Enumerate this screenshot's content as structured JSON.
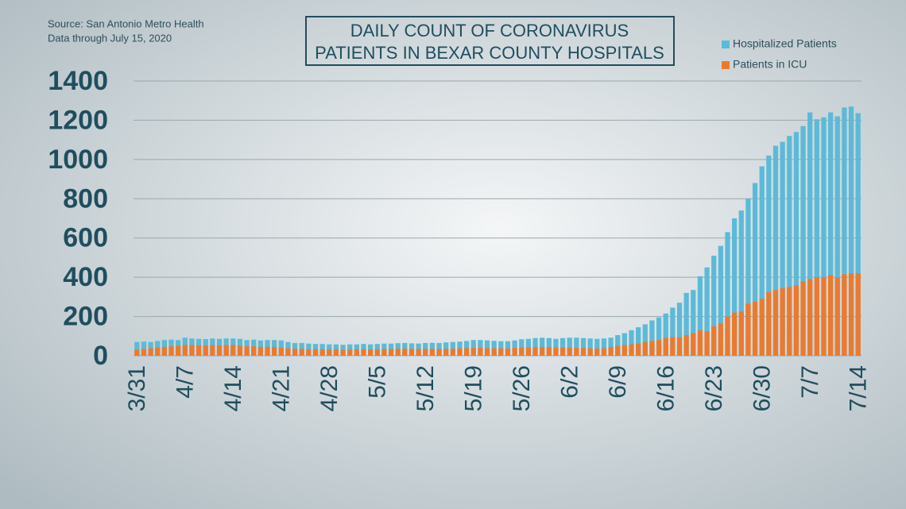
{
  "chart_data": {
    "type": "bar",
    "title": [
      "DAILY COUNT OF CORONAVIRUS",
      "PATIENTS IN BEXAR COUNTY HOSPITALS"
    ],
    "notes": [
      "Source: San Antonio Metro Health",
      "Data through July 15, 2020"
    ],
    "categories": [
      "3/31",
      null,
      null,
      null,
      null,
      null,
      null,
      "4/7",
      null,
      null,
      null,
      null,
      null,
      null,
      "4/14",
      null,
      null,
      null,
      null,
      null,
      null,
      "4/21",
      null,
      null,
      null,
      null,
      null,
      null,
      "4/28",
      null,
      null,
      null,
      null,
      null,
      null,
      "5/5",
      null,
      null,
      null,
      null,
      null,
      null,
      "5/12",
      null,
      null,
      null,
      null,
      null,
      null,
      "5/19",
      null,
      null,
      null,
      null,
      null,
      null,
      "5/26",
      null,
      null,
      null,
      null,
      null,
      null,
      "6/2",
      null,
      null,
      null,
      null,
      null,
      null,
      "6/9",
      null,
      null,
      null,
      null,
      null,
      null,
      "6/16",
      null,
      null,
      null,
      null,
      null,
      null,
      "6/23",
      null,
      null,
      null,
      null,
      null,
      null,
      "6/30",
      null,
      null,
      null,
      null,
      null,
      null,
      "7/7",
      null,
      null,
      null,
      null,
      null,
      null,
      "7/14"
    ],
    "series": [
      {
        "name": "Hospitalized Patients",
        "color": "#5bbad8",
        "values": [
          70,
          72,
          70,
          75,
          80,
          82,
          80,
          92,
          88,
          86,
          85,
          88,
          86,
          88,
          88,
          86,
          80,
          82,
          78,
          80,
          80,
          78,
          70,
          65,
          65,
          62,
          60,
          60,
          58,
          58,
          56,
          58,
          58,
          60,
          58,
          60,
          62,
          62,
          64,
          65,
          63,
          62,
          65,
          66,
          65,
          68,
          70,
          72,
          75,
          80,
          80,
          78,
          76,
          74,
          74,
          78,
          84,
          86,
          90,
          92,
          90,
          86,
          90,
          92,
          92,
          90,
          88,
          86,
          88,
          92,
          105,
          115,
          130,
          145,
          160,
          180,
          195,
          215,
          245,
          270,
          320,
          335,
          405,
          450,
          510,
          560,
          630,
          700,
          740,
          800,
          880,
          965,
          1020,
          1070,
          1090,
          1120,
          1140,
          1170,
          1240,
          1205,
          1215,
          1240,
          1220,
          1265,
          1270,
          1236
        ]
      },
      {
        "name": "Patients in ICU",
        "color": "#ec7a2d",
        "values": [
          30,
          35,
          38,
          42,
          45,
          48,
          50,
          55,
          55,
          53,
          52,
          55,
          53,
          55,
          55,
          52,
          48,
          48,
          45,
          45,
          45,
          42,
          38,
          36,
          35,
          33,
          33,
          32,
          32,
          32,
          30,
          32,
          32,
          33,
          32,
          33,
          34,
          34,
          36,
          36,
          35,
          34,
          35,
          35,
          34,
          35,
          36,
          38,
          38,
          40,
          40,
          38,
          38,
          38,
          37,
          40,
          42,
          42,
          44,
          45,
          44,
          42,
          42,
          42,
          40,
          40,
          38,
          36,
          38,
          45,
          50,
          55,
          58,
          62,
          70,
          75,
          80,
          90,
          95,
          95,
          105,
          115,
          130,
          125,
          150,
          165,
          200,
          220,
          225,
          265,
          275,
          290,
          325,
          335,
          345,
          350,
          360,
          380,
          390,
          400,
          400,
          410,
          400,
          415,
          420,
          420
        ]
      }
    ],
    "ylim": [
      0,
      1400
    ],
    "yticks": [
      0,
      200,
      400,
      600,
      800,
      1000,
      1200,
      1400
    ],
    "grid": true,
    "legend": "top-right"
  }
}
